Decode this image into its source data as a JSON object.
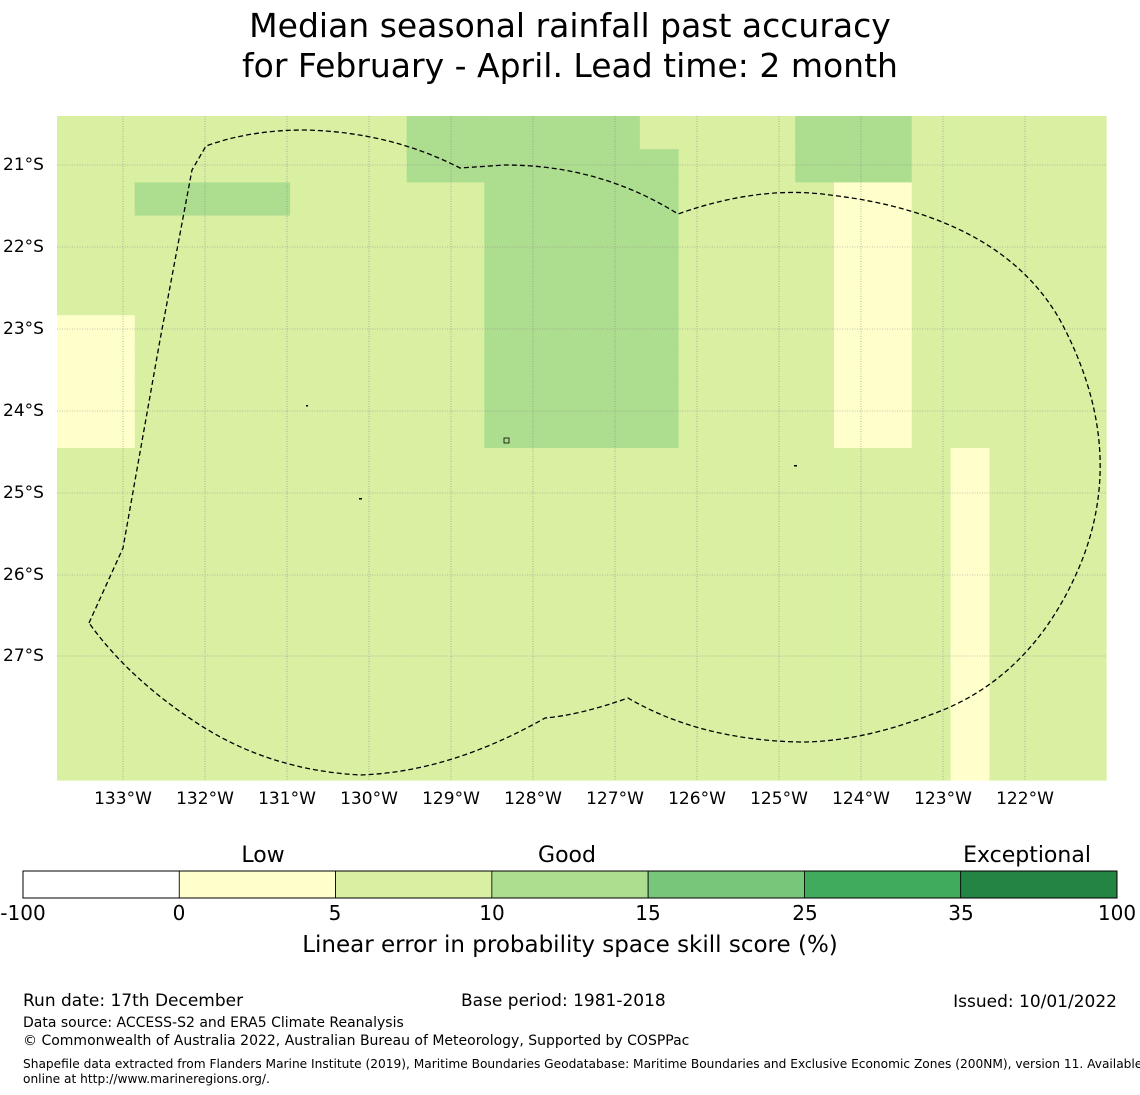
{
  "title": {
    "line1": "Median seasonal rainfall past accuracy",
    "line2": "for February - April. Lead time: 2 month"
  },
  "map": {
    "lat_labels": [
      "21°S",
      "22°S",
      "23°S",
      "24°S",
      "25°S",
      "26°S",
      "27°S"
    ],
    "lon_labels": [
      "133°W",
      "132°W",
      "131°W",
      "130°W",
      "129°W",
      "128°W",
      "127°W",
      "126°W",
      "125°W",
      "124°W",
      "123°W",
      "122°W"
    ],
    "colors": [
      "#ffffff",
      "#ffffcc",
      "#d9f0a3",
      "#addd8e",
      "#78c679",
      "#41ab5d",
      "#238443"
    ],
    "grid": [
      "222222222333333222233322222",
      "222222222333333322233322222",
      "223333222223333322221122222",
      "222222222223333322221122222",
      "222222222223333322221122222",
      "222222222223333322221122222",
      "112222222223333322221122222",
      "112222222223333322221122222",
      "112222222223333322221122222",
      "112222222223333322221122222",
      "222222222222222222222221222",
      "222222222222222222222221222",
      "222222222222222222222221222",
      "222222222222222222222221222",
      "222222222222222222222221222",
      "222222222222222222222221222",
      "222222222222222222222221222",
      "222222222222222222222221222",
      "222222222222222222222221222",
      "222222222222222222222221222"
    ]
  },
  "legend": {
    "categories": [
      "Low",
      "Good",
      "Exceptional"
    ],
    "ticks": [
      "-100",
      "0",
      "5",
      "10",
      "15",
      "25",
      "35",
      "100"
    ],
    "title": "Linear error in probability space skill score (%)"
  },
  "footer": {
    "run_date": "Run date: 17th December",
    "base_period": "Base period: 1981-2018",
    "issued": "Issued: 10/01/2022",
    "data_source": "Data source: ACCESS-S2 and ERA5 Climate Reanalysis",
    "copyright": "© Commonwealth of Australia 2022, Australian Bureau of Meteorology, Supported by COSPPac",
    "shapefile_line1": "Shapefile data extracted from Flanders Marine Institute (2019), Maritime Boundaries Geodatabase: Maritime Boundaries and Exclusive Economic Zones (200NM), version 11. Available",
    "shapefile_line2": "online at http://www.marineregions.org/."
  }
}
